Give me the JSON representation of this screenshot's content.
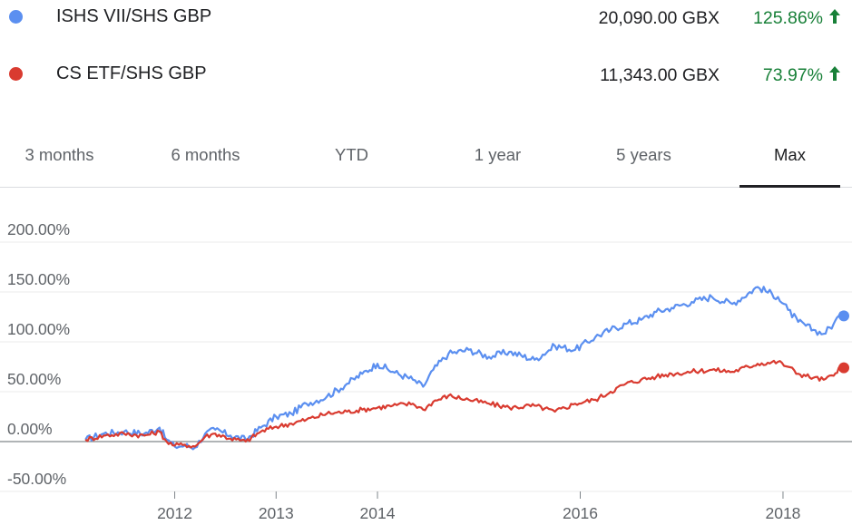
{
  "legend": [
    {
      "name": "ISHS VII/SHS GBP",
      "price": "20,090.00 GBX",
      "change": "125.86%",
      "color": "#5b8ff0",
      "arrow_icon": "arrow-up-icon"
    },
    {
      "name": "CS ETF/SHS GBP",
      "price": "11,343.00 GBX",
      "change": "73.97%",
      "color": "#d93b30",
      "arrow_icon": "arrow-up-icon"
    }
  ],
  "tabs": [
    {
      "label": "3 months"
    },
    {
      "label": "6 months"
    },
    {
      "label": "YTD"
    },
    {
      "label": "1 year"
    },
    {
      "label": "5 years"
    },
    {
      "label": "Max",
      "active": true
    }
  ],
  "chart_data": {
    "type": "line",
    "ylim": [
      -50,
      200
    ],
    "xlim": [
      2011.1,
      2018.6
    ],
    "yticks": [
      200,
      150,
      100,
      50,
      0,
      -50
    ],
    "ytick_labels": [
      "200.00%",
      "150.00%",
      "100.00%",
      "50.00%",
      "0.00%",
      "-50.00%"
    ],
    "xticks": [
      2012,
      2013,
      2014,
      2016,
      2018
    ],
    "xtick_labels": [
      "2012",
      "2013",
      "2014",
      "2016",
      "2018"
    ],
    "grid": true,
    "series": [
      {
        "name": "ISHS VII/SHS GBP",
        "color": "#5b8ff0",
        "x": [
          2011.12,
          2011.3,
          2011.5,
          2011.7,
          2011.85,
          2011.92,
          2012.0,
          2012.1,
          2012.2,
          2012.3,
          2012.4,
          2012.55,
          2012.7,
          2012.85,
          2013.0,
          2013.15,
          2013.3,
          2013.5,
          2013.7,
          2013.85,
          2014.0,
          2014.15,
          2014.35,
          2014.45,
          2014.55,
          2014.7,
          2014.9,
          2015.1,
          2015.3,
          2015.55,
          2015.75,
          2015.95,
          2016.15,
          2016.3,
          2016.45,
          2016.6,
          2016.75,
          2016.9,
          2017.1,
          2017.3,
          2017.5,
          2017.75,
          2017.95,
          2018.05,
          2018.15,
          2018.3,
          2018.4,
          2018.5,
          2018.55,
          2018.6
        ],
        "y": [
          2,
          8,
          10,
          8,
          14,
          2,
          -5,
          -4,
          -6,
          8,
          12,
          6,
          2,
          14,
          25,
          28,
          38,
          45,
          58,
          68,
          78,
          70,
          62,
          55,
          72,
          88,
          92,
          85,
          90,
          82,
          96,
          92,
          105,
          112,
          118,
          122,
          130,
          134,
          140,
          145,
          138,
          155,
          145,
          132,
          120,
          112,
          108,
          118,
          126,
          126
        ]
      },
      {
        "name": "CS ETF/SHS GBP",
        "color": "#d93b30",
        "x": [
          2011.12,
          2011.3,
          2011.5,
          2011.7,
          2011.85,
          2011.92,
          2012.0,
          2012.1,
          2012.2,
          2012.3,
          2012.4,
          2012.55,
          2012.7,
          2012.85,
          2013.0,
          2013.15,
          2013.3,
          2013.5,
          2013.7,
          2013.85,
          2014.0,
          2014.15,
          2014.35,
          2014.45,
          2014.55,
          2014.7,
          2014.9,
          2015.1,
          2015.3,
          2015.55,
          2015.75,
          2015.95,
          2016.15,
          2016.3,
          2016.45,
          2016.6,
          2016.75,
          2016.9,
          2017.1,
          2017.3,
          2017.5,
          2017.75,
          2017.95,
          2018.05,
          2018.15,
          2018.3,
          2018.4,
          2018.5,
          2018.55,
          2018.6
        ],
        "y": [
          2,
          6,
          8,
          6,
          10,
          0,
          -4,
          -3,
          -5,
          5,
          8,
          3,
          0,
          10,
          15,
          18,
          22,
          28,
          30,
          32,
          34,
          36,
          38,
          32,
          40,
          46,
          42,
          38,
          34,
          36,
          30,
          38,
          42,
          50,
          58,
          62,
          65,
          68,
          70,
          72,
          70,
          78,
          80,
          75,
          68,
          64,
          62,
          66,
          74,
          74
        ]
      }
    ]
  }
}
